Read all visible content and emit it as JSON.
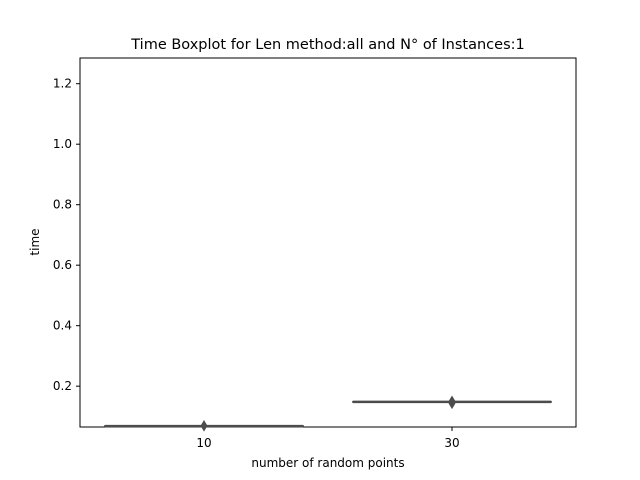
{
  "chart_data": {
    "type": "box",
    "title": "Time Boxplot for Len method:all and N° of Instances:1",
    "xlabel": "number of random points",
    "ylabel": "time",
    "categories": [
      "10",
      "30"
    ],
    "ylim": [
      0.065,
      1.285
    ],
    "yticks": [
      0.2,
      0.4,
      0.6,
      0.8,
      1.0,
      1.2
    ],
    "ytick_labels": [
      "0.2",
      "0.4",
      "0.6",
      "0.8",
      "1.0",
      "1.2"
    ],
    "grid": false,
    "legend": "none",
    "box_color": "#4c4c4c",
    "series": [
      {
        "category": "10",
        "min": 0.068,
        "q1": 0.068,
        "median": 0.068,
        "q3": 0.068,
        "max": 0.068,
        "outliers": [
          0.069
        ]
      },
      {
        "category": "30",
        "min": 0.148,
        "q1": 0.148,
        "median": 0.148,
        "q3": 0.148,
        "max": 0.148,
        "outliers": [
          0.15,
          0.143
        ]
      }
    ]
  }
}
